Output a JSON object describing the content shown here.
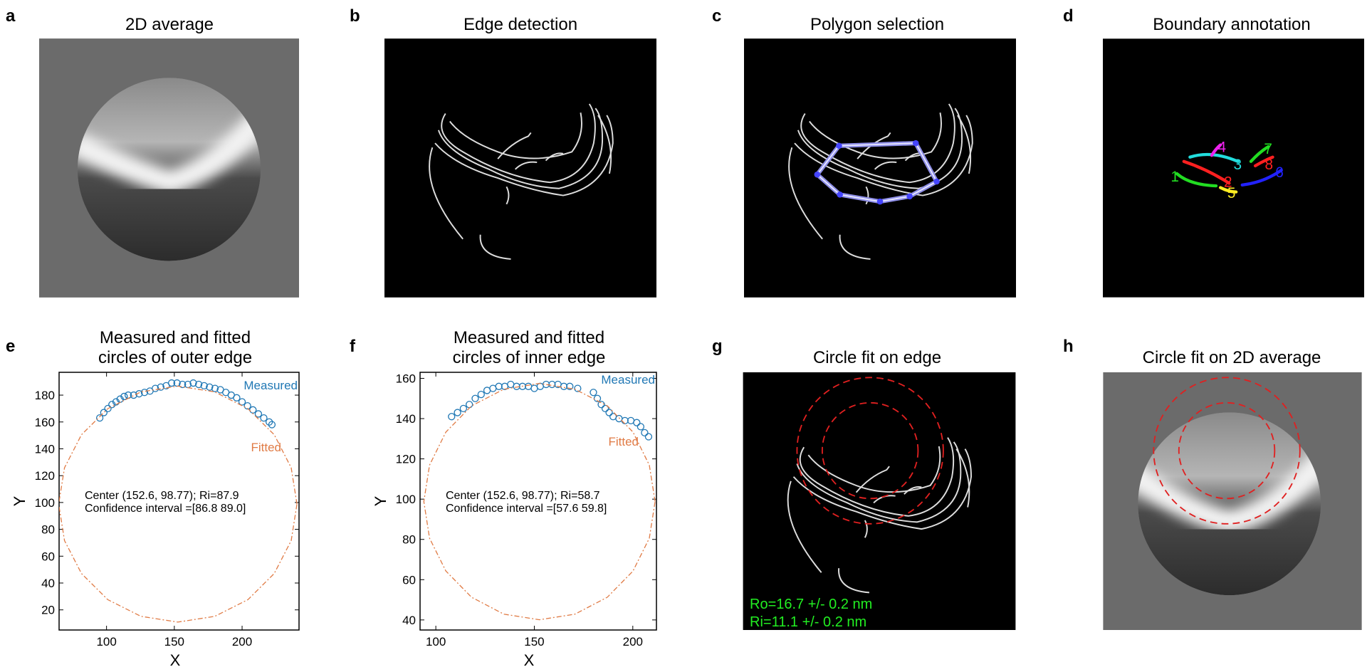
{
  "panels": {
    "a": {
      "letter": "a",
      "title": "2D average"
    },
    "b": {
      "letter": "b",
      "title": "Edge detection"
    },
    "c": {
      "letter": "c",
      "title": "Polygon selection"
    },
    "d": {
      "letter": "d",
      "title": "Boundary annotation",
      "labels": [
        "1",
        "2",
        "3",
        "4",
        "5",
        "6",
        "7",
        "8"
      ]
    },
    "g": {
      "letter": "g",
      "title": "Circle fit on edge",
      "annotations": [
        "Ro=16.7 +/- 0.2 nm",
        "Ri=11.1 +/- 0.2 nm"
      ]
    },
    "h": {
      "letter": "h",
      "title": "Circle fit on 2D average"
    }
  },
  "chart_data": [
    {
      "type": "scatter",
      "panel": "e",
      "title": [
        "Measured and fitted",
        "circles of outer edge"
      ],
      "xlabel": "X",
      "ylabel": "Y",
      "annotations": [
        "Center (152.6, 98.77); Ri=87.9",
        "Confidence interval =[86.8 89.0]"
      ],
      "xlim": [
        65,
        242
      ],
      "ylim": [
        5,
        197
      ],
      "xticks": [
        100,
        150,
        200
      ],
      "yticks": [
        20,
        40,
        60,
        80,
        100,
        120,
        140,
        160,
        180
      ],
      "series": [
        {
          "name": "Measured",
          "color": "#1f77b4",
          "marker": "o",
          "x": [
            95,
            98,
            101,
            104,
            107,
            110,
            113,
            116,
            120,
            124,
            128,
            132,
            136,
            140,
            144,
            148,
            152,
            156,
            160,
            164,
            168,
            172,
            176,
            180,
            184,
            188,
            192,
            196,
            200,
            204,
            208,
            212,
            216,
            220,
            222
          ],
          "y": [
            163,
            167,
            170,
            173,
            175,
            177,
            179,
            180,
            180,
            181,
            182,
            183,
            185,
            186,
            187,
            189,
            189,
            188,
            188,
            189,
            188,
            187,
            186,
            185,
            184,
            182,
            180,
            178,
            175,
            172,
            169,
            166,
            163,
            160,
            158
          ]
        },
        {
          "name": "Fitted",
          "color": "#e07b45",
          "linestyle": "dashdot",
          "x": [
            240.5,
            236.2,
            223.7,
            204.3,
            179.8,
            152.6,
            125.4,
            100.9,
            81.5,
            69.0,
            64.7,
            69.0,
            81.5,
            100.9,
            125.4,
            152.6,
            179.8,
            204.3,
            223.7,
            236.2,
            240.5
          ],
          "y": [
            98.8,
            125.9,
            150.5,
            169.9,
            182.4,
            186.7,
            182.4,
            169.9,
            150.5,
            125.9,
            98.8,
            71.6,
            47.1,
            27.6,
            15.2,
            10.9,
            15.2,
            27.6,
            47.1,
            71.6,
            98.8
          ]
        }
      ]
    },
    {
      "type": "scatter",
      "panel": "f",
      "title": [
        "Measured and fitted",
        "circles of inner edge"
      ],
      "xlabel": "X",
      "ylabel": "Y",
      "annotations": [
        "Center (152.6, 98.77); Ri=58.7",
        "Confidence interval =[57.6 59.8]"
      ],
      "xlim": [
        92,
        212
      ],
      "ylim": [
        35,
        163
      ],
      "xticks": [
        100,
        150,
        200
      ],
      "yticks": [
        40,
        60,
        80,
        100,
        120,
        140,
        160
      ],
      "series": [
        {
          "name": "Measured",
          "color": "#1f77b4",
          "marker": "o",
          "x": [
            108,
            111,
            114,
            117,
            120,
            123,
            126,
            129,
            132,
            135,
            138,
            141,
            144,
            147,
            150,
            153,
            156,
            159,
            162,
            165,
            168,
            172,
            180,
            182,
            184,
            186,
            188,
            190,
            193,
            196,
            199,
            202,
            204,
            206,
            208
          ],
          "y": [
            141,
            143,
            145,
            147,
            150,
            152,
            154,
            155,
            156,
            156,
            157,
            156,
            156,
            156,
            155,
            156,
            157,
            157,
            157,
            156,
            156,
            155,
            153,
            150,
            147,
            145,
            143,
            141,
            140,
            139,
            139,
            138,
            136,
            133,
            131
          ]
        },
        {
          "name": "Fitted",
          "color": "#e07b45",
          "linestyle": "dashdot",
          "x": [
            211.3,
            208.4,
            200.1,
            187.1,
            170.7,
            152.6,
            134.5,
            118.1,
            105.1,
            96.8,
            93.9,
            96.8,
            105.1,
            118.1,
            134.5,
            152.6,
            170.7,
            187.1,
            200.1,
            208.4,
            211.3
          ],
          "y": [
            98.8,
            116.9,
            133.3,
            146.3,
            154.6,
            157.5,
            154.6,
            146.3,
            133.3,
            116.9,
            98.8,
            80.6,
            64.3,
            51.3,
            42.9,
            40.1,
            42.9,
            51.3,
            64.3,
            80.6,
            98.8
          ]
        }
      ]
    }
  ]
}
